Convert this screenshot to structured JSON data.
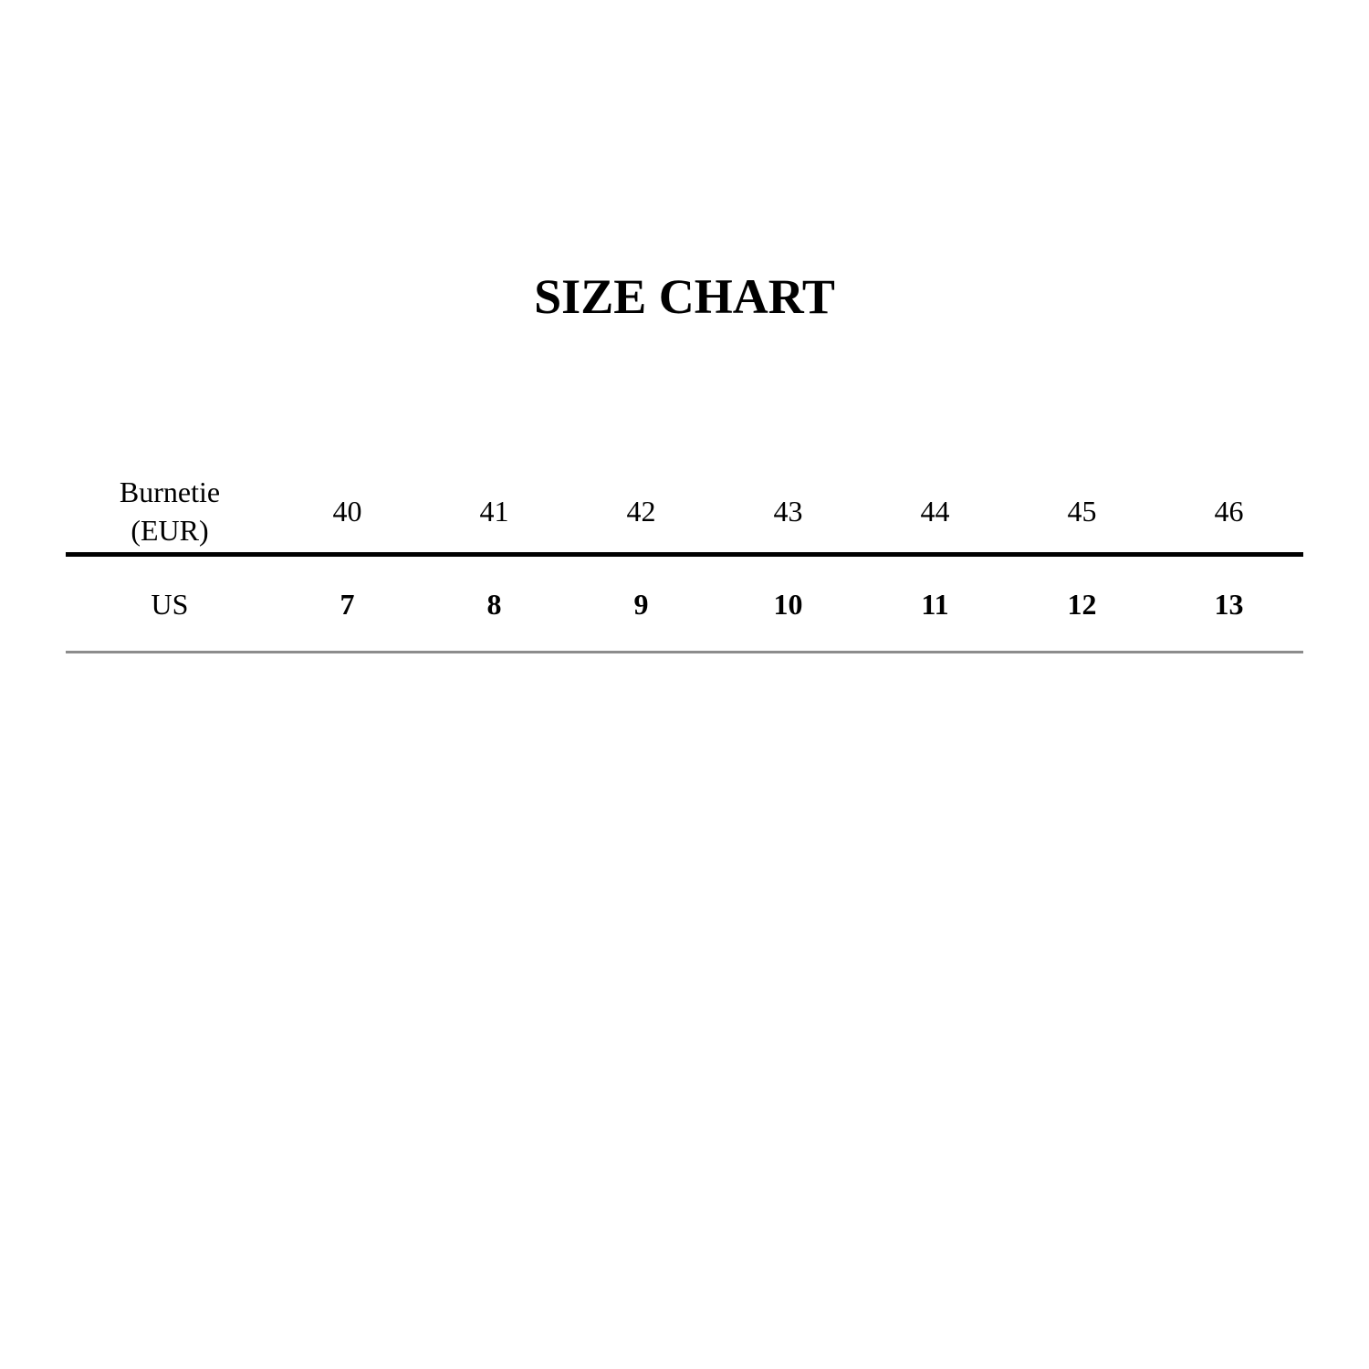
{
  "title": "SIZE CHART",
  "table": {
    "header_label_line1": "Burnetie",
    "header_label_line2": "(EUR)",
    "eur": [
      "40",
      "41",
      "42",
      "43",
      "44",
      "45",
      "46"
    ],
    "row_label": "US",
    "us": [
      "7",
      "8",
      "9",
      "10",
      "11",
      "12",
      "13"
    ]
  },
  "colors": {
    "text": "#000000",
    "header_rule": "#000000",
    "bottom_rule": "#8c8c8c"
  }
}
